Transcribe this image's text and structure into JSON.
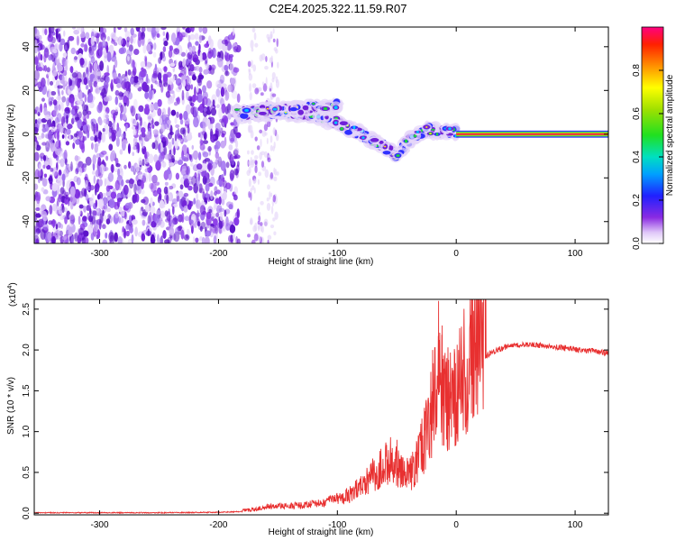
{
  "title": "C2E4.2025.322.11.59.R07",
  "colors": {
    "snr_line": "#e83030",
    "stripe_core": "#e00050",
    "stripe_mid": "#ffee00",
    "stripe_edge": "#20d040"
  },
  "chart_data": [
    {
      "type": "heatmap",
      "name": "spectrogram",
      "xlabel": "Height of straight line (km)",
      "ylabel": "Frequency (Hz)",
      "xlim": [
        -355,
        128
      ],
      "ylim": [
        -50,
        49
      ],
      "xticks": [
        -300,
        -200,
        -100,
        0,
        100
      ],
      "yticks": [
        -40,
        -20,
        0,
        20,
        40
      ],
      "xtick_labels": [
        "-300",
        "-200",
        "-100",
        "0",
        "100"
      ],
      "ytick_labels": [
        "-40",
        "-20",
        "0",
        "20",
        "40"
      ],
      "colorbar": {
        "label": "Normalized spectral amplitude",
        "ticks": [
          0.0,
          0.2,
          0.4,
          0.6,
          0.8
        ],
        "tick_labels": [
          "0.0",
          "0.2",
          "0.4",
          "0.6",
          "0.8"
        ],
        "range": [
          0,
          1
        ]
      },
      "regions": {
        "noise_x_range": [
          -355,
          -183
        ],
        "sparse_noise_x_range": [
          -175,
          -150
        ],
        "signal_track": [
          [
            -183,
            9
          ],
          [
            -160,
            10
          ],
          [
            -140,
            10
          ],
          [
            -120,
            9
          ],
          [
            -100,
            5
          ],
          [
            -80,
            0
          ],
          [
            -60,
            -6
          ],
          [
            -50,
            -10
          ],
          [
            -40,
            -3
          ],
          [
            -25,
            2
          ],
          [
            -10,
            1
          ],
          [
            0,
            1
          ]
        ],
        "upper_track": [
          [
            -185,
            10
          ],
          [
            -150,
            11
          ],
          [
            -120,
            12
          ],
          [
            -100,
            13
          ]
        ],
        "constant_line_x_range": [
          0,
          128
        ],
        "constant_line_freq": 0
      }
    },
    {
      "type": "line",
      "name": "snr",
      "xlabel": "Height of straight line (km)",
      "ylabel": "SNR (10 * v/v)",
      "y_multiplier": "(x10",
      "y_multiplier_exp": "4",
      "y_multiplier_close": ")",
      "xlim": [
        -355,
        128
      ],
      "ylim": [
        -0.02,
        2.62
      ],
      "xticks": [
        -300,
        -200,
        -100,
        0,
        100
      ],
      "yticks": [
        0.0,
        0.5,
        1.0,
        1.5,
        2.0,
        2.5
      ],
      "xtick_labels": [
        "-300",
        "-200",
        "-100",
        "0",
        "100"
      ],
      "ytick_labels": [
        "0.0",
        "0.5",
        "1.0",
        "1.5",
        "2.0",
        "2.5"
      ],
      "envelope": [
        [
          -355,
          0.0
        ],
        [
          -250,
          0.0
        ],
        [
          -200,
          0.005
        ],
        [
          -170,
          0.02
        ],
        [
          -160,
          0.05
        ],
        [
          -130,
          0.05
        ],
        [
          -110,
          0.08
        ],
        [
          -90,
          0.2
        ],
        [
          -75,
          0.35
        ],
        [
          -65,
          0.45
        ],
        [
          -55,
          0.55
        ],
        [
          -45,
          0.4
        ],
        [
          -35,
          0.45
        ],
        [
          -28,
          0.75
        ],
        [
          -20,
          1.1
        ],
        [
          -15,
          1.45
        ],
        [
          -10,
          1.3
        ],
        [
          -5,
          1.15
        ],
        [
          0,
          1.3
        ],
        [
          10,
          1.6
        ],
        [
          20,
          1.85
        ],
        [
          30,
          1.98
        ],
        [
          45,
          2.05
        ],
        [
          60,
          2.07
        ],
        [
          80,
          2.04
        ],
        [
          100,
          2.01
        ],
        [
          128,
          1.96
        ]
      ],
      "spikes": [
        [
          -15,
          2.6
        ],
        [
          -12,
          2.3
        ],
        [
          -20,
          2.0
        ],
        [
          -8,
          1.9
        ],
        [
          -50,
          0.9
        ]
      ]
    }
  ]
}
